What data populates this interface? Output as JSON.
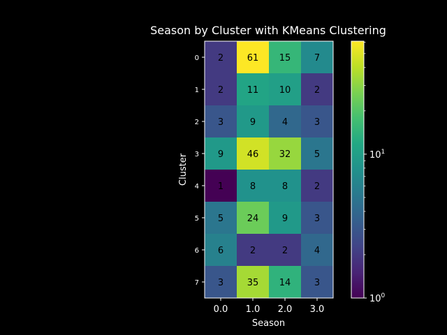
{
  "chart_data": {
    "type": "heatmap",
    "title": "Season by Cluster with KMeans Clustering",
    "xlabel": "Season",
    "ylabel": "Cluster",
    "x_categories": [
      "0.0",
      "1.0",
      "2.0",
      "3.0"
    ],
    "y_categories": [
      "0",
      "1",
      "2",
      "3",
      "4",
      "5",
      "6",
      "7"
    ],
    "values": [
      [
        2,
        61,
        15,
        7
      ],
      [
        2,
        11,
        10,
        2
      ],
      [
        3,
        9,
        4,
        3
      ],
      [
        9,
        46,
        32,
        5
      ],
      [
        1,
        8,
        8,
        2
      ],
      [
        5,
        24,
        9,
        3
      ],
      [
        6,
        2,
        2,
        4
      ],
      [
        3,
        35,
        14,
        3
      ]
    ],
    "colormap": "viridis",
    "color_scale": "log",
    "color_range": [
      1,
      61
    ],
    "colorbar_ticks": [
      {
        "value": 1,
        "label": "10",
        "exp": "0"
      },
      {
        "value": 10,
        "label": "10",
        "exp": "1"
      }
    ],
    "grid": false,
    "background": "#000000",
    "text_color": "#ffffff"
  }
}
